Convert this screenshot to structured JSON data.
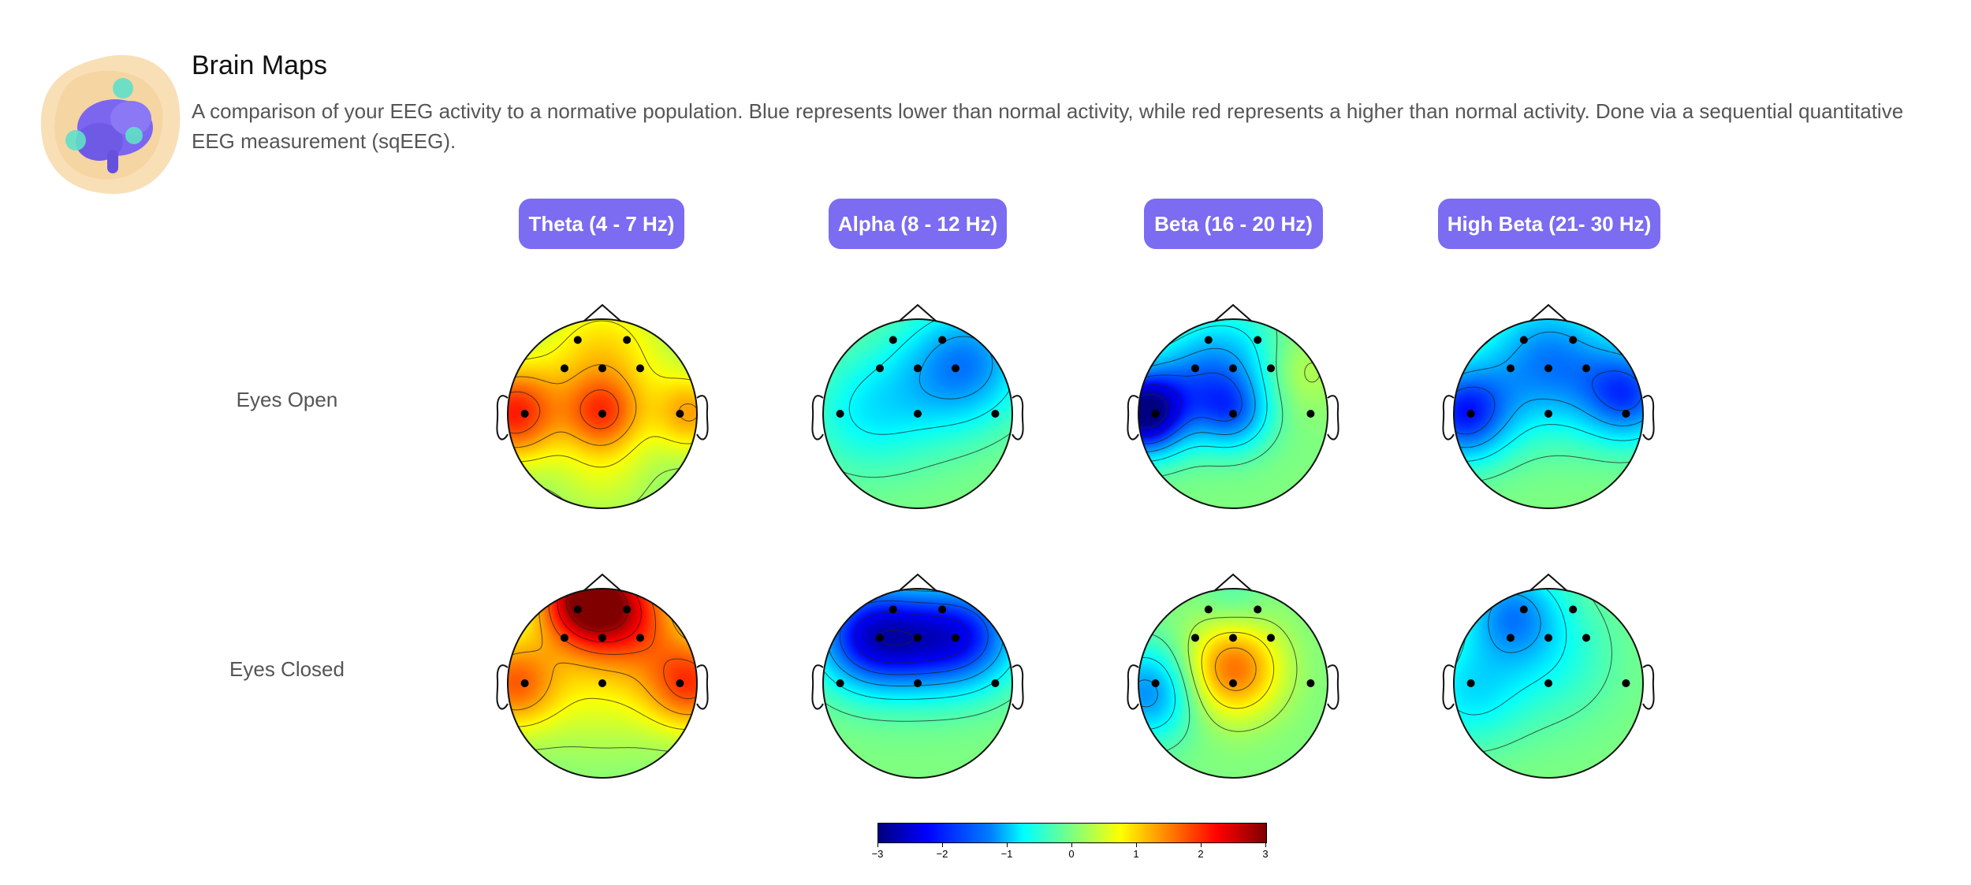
{
  "header": {
    "title": "Brain Maps",
    "description": "A comparison of your EEG activity to a normative population. Blue represents lower than normal activity, while red represents a higher than normal activity. Done via a sequential quantitative EEG measurement (sqEEG).",
    "logo_icon": "brain-icon"
  },
  "colors": {
    "band_badge": "#7b6cf2",
    "logo_blob": "#f5d9a8",
    "logo_brain": "#7c66f0",
    "logo_accent": "#5fe0c8"
  },
  "chart_data": {
    "type": "heatmap",
    "subtype": "eeg-topographic-map",
    "bands": [
      "Theta (4 - 7 Hz)",
      "Alpha (8 - 12 Hz)",
      "Beta (16 - 20 Hz)",
      "High Beta (21- 30 Hz)"
    ],
    "conditions": [
      "Eyes Open",
      "Eyes Closed"
    ],
    "colorscale": "jet",
    "vlim": [
      -3,
      3
    ],
    "colorbar_ticks": [
      "−3",
      "−2",
      "−1",
      "0",
      "1",
      "2",
      "3"
    ],
    "maps": [
      {
        "condition": "Eyes Open",
        "band": "Theta (4 - 7 Hz)",
        "sources": [
          {
            "u": -0.95,
            "v": 0.0,
            "value": 2.0,
            "spread": 0.35
          },
          {
            "u": 0.95,
            "v": 0.0,
            "value": 1.2,
            "spread": 0.3
          },
          {
            "u": 0.0,
            "v": 0.0,
            "value": 1.3,
            "spread": 0.28
          },
          {
            "u": 0.0,
            "v": -0.6,
            "value": 1.0,
            "spread": 0.5
          },
          {
            "u": 0.0,
            "v": 0.6,
            "value": 0.5,
            "spread": 0.4
          }
        ]
      },
      {
        "condition": "Eyes Open",
        "band": "Alpha (8 - 12 Hz)",
        "sources": [
          {
            "u": 0.55,
            "v": -0.55,
            "value": -1.3,
            "spread": 0.45
          },
          {
            "u": 0.0,
            "v": -0.25,
            "value": -0.5,
            "spread": 0.5
          },
          {
            "u": -0.6,
            "v": 0.0,
            "value": -0.6,
            "spread": 0.45
          }
        ]
      },
      {
        "condition": "Eyes Open",
        "band": "Beta (16 - 20 Hz)",
        "sources": [
          {
            "u": -0.95,
            "v": 0.0,
            "value": -2.8,
            "spread": 0.3
          },
          {
            "u": 0.0,
            "v": 0.0,
            "value": -1.2,
            "spread": 0.28
          },
          {
            "u": 0.0,
            "v": -0.6,
            "value": -0.8,
            "spread": 0.4
          },
          {
            "u": 0.7,
            "v": -0.45,
            "value": 0.4,
            "spread": 0.3
          },
          {
            "u": -0.45,
            "v": -0.3,
            "value": -1.0,
            "spread": 0.4
          }
        ]
      },
      {
        "condition": "Eyes Open",
        "band": "High Beta (21- 30 Hz)",
        "sources": [
          {
            "u": -0.9,
            "v": 0.0,
            "value": -2.0,
            "spread": 0.35
          },
          {
            "u": 0.85,
            "v": -0.2,
            "value": -1.7,
            "spread": 0.35
          },
          {
            "u": 0.0,
            "v": -0.55,
            "value": -1.5,
            "spread": 0.5
          }
        ]
      },
      {
        "condition": "Eyes Closed",
        "band": "Theta (4 - 7 Hz)",
        "sources": [
          {
            "u": -0.2,
            "v": -0.9,
            "value": 2.6,
            "spread": 0.35
          },
          {
            "u": 0.3,
            "v": -0.75,
            "value": 1.6,
            "spread": 0.4
          },
          {
            "u": -0.95,
            "v": 0.0,
            "value": 1.6,
            "spread": 0.35
          },
          {
            "u": 0.95,
            "v": 0.0,
            "value": 1.8,
            "spread": 0.35
          },
          {
            "u": 0.0,
            "v": 0.0,
            "value": 0.6,
            "spread": 0.5
          }
        ]
      },
      {
        "condition": "Eyes Closed",
        "band": "Alpha (8 - 12 Hz)",
        "sources": [
          {
            "u": -0.55,
            "v": -0.5,
            "value": -2.0,
            "spread": 0.4
          },
          {
            "u": 0.55,
            "v": -0.5,
            "value": -1.7,
            "spread": 0.4
          },
          {
            "u": 0.0,
            "v": -0.45,
            "value": -1.3,
            "spread": 0.4
          }
        ]
      },
      {
        "condition": "Eyes Closed",
        "band": "Beta (16 - 20 Hz)",
        "sources": [
          {
            "u": 0.0,
            "v": -0.15,
            "value": 1.6,
            "spread": 0.35
          },
          {
            "u": -0.9,
            "v": 0.1,
            "value": -1.4,
            "spread": 0.35
          },
          {
            "u": 0.0,
            "v": -0.9,
            "value": -0.3,
            "spread": 0.25
          }
        ]
      },
      {
        "condition": "Eyes Closed",
        "band": "High Beta (21- 30 Hz)",
        "sources": [
          {
            "u": -0.4,
            "v": -0.75,
            "value": -1.2,
            "spread": 0.35
          },
          {
            "u": -0.85,
            "v": 0.1,
            "value": -0.8,
            "spread": 0.4
          },
          {
            "u": 0.0,
            "v": -0.3,
            "value": -0.6,
            "spread": 0.5
          }
        ]
      }
    ],
    "electrodes": [
      {
        "u": -0.26,
        "v": -0.78
      },
      {
        "u": 0.26,
        "v": -0.78
      },
      {
        "u": -0.4,
        "v": -0.48
      },
      {
        "u": 0.0,
        "v": -0.48
      },
      {
        "u": 0.4,
        "v": -0.48
      },
      {
        "u": -0.82,
        "v": 0.0
      },
      {
        "u": 0.0,
        "v": 0.0
      },
      {
        "u": 0.82,
        "v": 0.0
      }
    ]
  }
}
